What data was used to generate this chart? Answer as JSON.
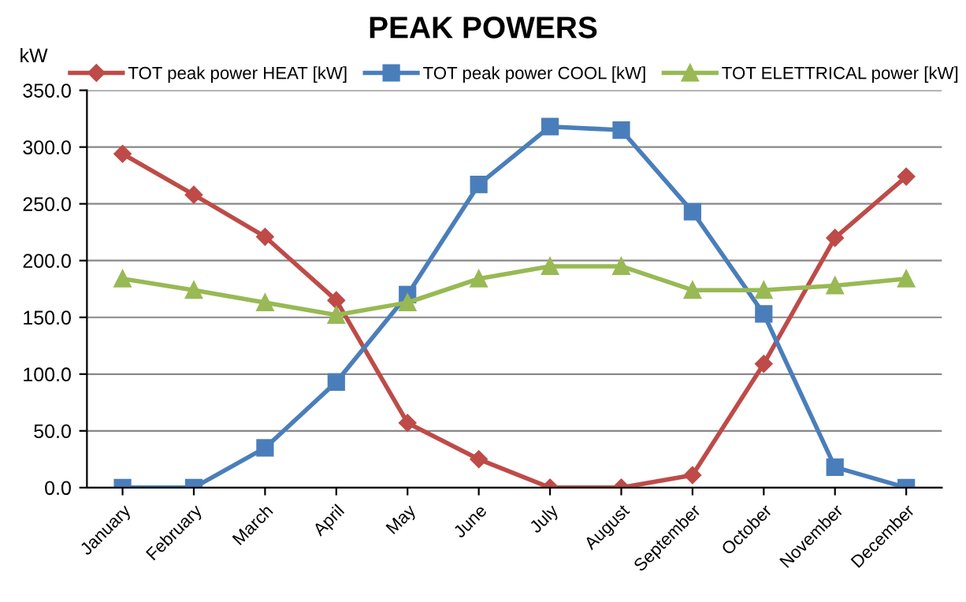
{
  "chart_data": {
    "type": "line",
    "title": "PEAK POWERS",
    "ylabel": "kW",
    "categories": [
      "January",
      "February",
      "March",
      "April",
      "May",
      "June",
      "July",
      "August",
      "September",
      "October",
      "November",
      "December"
    ],
    "series": [
      {
        "name": "TOT peak power HEAT [kW]",
        "color": "#be4b48",
        "marker": "diamond",
        "values": [
          294,
          258,
          221,
          165,
          57,
          25,
          0,
          0,
          11,
          109,
          220,
          274
        ]
      },
      {
        "name": "TOT peak power COOL [kW]",
        "color": "#4a7ebb",
        "marker": "square",
        "values": [
          0,
          0,
          35,
          93,
          170,
          267,
          318,
          315,
          243,
          153,
          18,
          0
        ]
      },
      {
        "name": "TOT ELETTRICAL power [kW]",
        "color": "#98b954",
        "marker": "triangle",
        "values": [
          184,
          174,
          163,
          152,
          163,
          184,
          195,
          195,
          174,
          174,
          178,
          184
        ]
      }
    ],
    "ylim": [
      0,
      350
    ],
    "yticks": [
      {
        "value": 0,
        "label": "0.0"
      },
      {
        "value": 50,
        "label": "50.0"
      },
      {
        "value": 100,
        "label": "100.0"
      },
      {
        "value": 150,
        "label": "150.0"
      },
      {
        "value": 200,
        "label": "200.0"
      },
      {
        "value": 250,
        "label": "250.0"
      },
      {
        "value": 300,
        "label": "300.0"
      },
      {
        "value": 350,
        "label": "350.0"
      }
    ],
    "grid": "y",
    "legend": "top",
    "line_style": "solid"
  }
}
